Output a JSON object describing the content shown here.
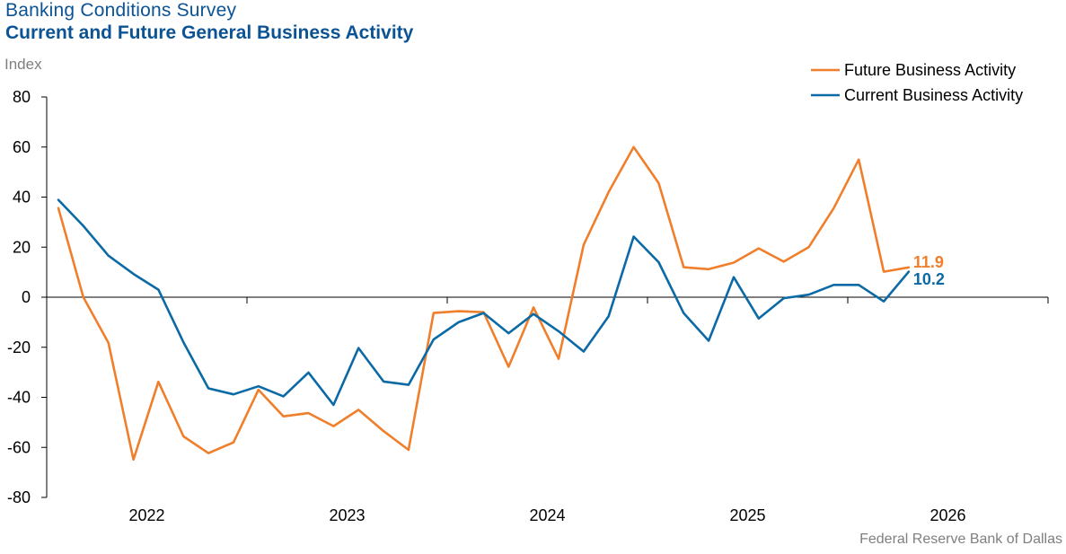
{
  "header": {
    "survey": "Banking  Conditions  Survey",
    "title": "Current and Future General Business Activity"
  },
  "source": "Federal Reserve  Bank of Dallas",
  "chart_data": {
    "type": "line",
    "ylabel": "Index",
    "ylim": [
      -80,
      80
    ],
    "yticks": [
      80,
      60,
      40,
      20,
      0,
      -20,
      -40,
      -60,
      -80
    ],
    "xaxis_labels": [
      "2022",
      "2023",
      "2024",
      "2025",
      "2026"
    ],
    "x": [
      "2021-Q3a",
      "2021-Q3b",
      "2021-Q4a",
      "2021-Q4b",
      "2022-Q1a",
      "2022-Q1b",
      "2022-Q2a",
      "2022-Q2b",
      "2022-Q3a",
      "2022-Q3b",
      "2022-Q4a",
      "2022-Q4b",
      "2023-Q1a",
      "2023-Q1b",
      "2023-Q2a",
      "2023-Q2b",
      "2023-Q3a",
      "2023-Q3b",
      "2023-Q4a",
      "2023-Q4b",
      "2024-Q1a",
      "2024-Q1b",
      "2024-Q2a",
      "2024-Q2b",
      "2024-Q3a",
      "2024-Q3b",
      "2024-Q4a",
      "2024-Q4b",
      "2025-Q1a",
      "2025-Q1b",
      "2025-Q2a",
      "2025-Q2b",
      "2025-Q3a",
      "2025-Q3b",
      "2025-Q4a"
    ],
    "series": [
      {
        "name": "Future Business Activity",
        "color": "#f07f2c",
        "values": [
          35.6,
          0,
          -18.2,
          -64.9,
          -33.8,
          -55.6,
          -62.3,
          -58,
          -37,
          -47.6,
          -46.3,
          -51.5,
          -45,
          -53.5,
          -61,
          -6.3,
          -5.6,
          -6,
          -27.8,
          -4.1,
          -24.6,
          20.9,
          42,
          60,
          45.6,
          12,
          11.2,
          13.8,
          19.5,
          14.2,
          20,
          35.6,
          55,
          10.2,
          11.9
        ],
        "end_label": "11.9"
      },
      {
        "name": "Current Business Activity",
        "color": "#0b6aa6",
        "values": [
          38.9,
          28.5,
          16.6,
          9.3,
          3,
          -18,
          -36.4,
          -38.8,
          -35.6,
          -39.6,
          -30.1,
          -43,
          -20.3,
          -33.7,
          -35,
          -16.9,
          -10,
          -6.3,
          -14.4,
          -6.7,
          -13.6,
          -21.7,
          -7.6,
          24.2,
          14,
          -6.4,
          -17.4,
          8,
          -8.5,
          -0.4,
          1,
          4.9,
          4.9,
          -1.7,
          10.2
        ],
        "end_label": "10.2"
      }
    ],
    "legend_placement": "top-right",
    "grid": false
  }
}
